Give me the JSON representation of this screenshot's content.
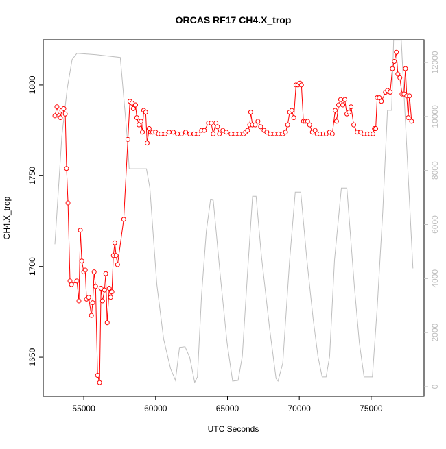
{
  "chart_data": {
    "type": "line",
    "title": "ORCAS RF17 CH4.X_trop",
    "xlabel": "UTC Seconds",
    "ylabel": "CH4.X_trop",
    "xlim": [
      52177,
      78684
    ],
    "ylim": [
      1628.5,
      1824.9
    ],
    "y2lim": [
      -356,
      12840
    ],
    "xticks": [
      55000,
      60000,
      65000,
      70000,
      75000
    ],
    "yticks": [
      1650,
      1700,
      1750,
      1800
    ],
    "y2ticks": [
      0,
      2000,
      4000,
      6000,
      8000,
      10000,
      12000
    ],
    "series": [
      {
        "color": "#ff0000",
        "markers": true,
        "x": [
          52990,
          53130,
          53270,
          53370,
          53470,
          53610,
          53710,
          53800,
          53900,
          54040,
          54140,
          54520,
          54660,
          54760,
          54860,
          55000,
          55100,
          55190,
          55340,
          55530,
          55620,
          55720,
          55820,
          55960,
          56100,
          56200,
          56300,
          56440,
          56530,
          56630,
          56770,
          56870,
          56960,
          57060,
          57160,
          57250,
          57350,
          57780,
          58070,
          58210,
          58360,
          58450,
          58600,
          58690,
          58840,
          58980,
          59080,
          59170,
          59310,
          59410,
          59550,
          59650,
          59790,
          60000,
          60200,
          60370,
          60660,
          60940,
          61230,
          61520,
          61800,
          62090,
          62380,
          62670,
          62960,
          63200,
          63390,
          63680,
          63870,
          64010,
          64200,
          64300,
          64440,
          64680,
          64920,
          65250,
          65540,
          65830,
          66120,
          66260,
          66400,
          66550,
          66620,
          66740,
          66930,
          67120,
          67310,
          67550,
          67740,
          67980,
          68270,
          68560,
          68850,
          69040,
          69190,
          69330,
          69480,
          69620,
          69770,
          69910,
          70050,
          70150,
          70290,
          70430,
          70580,
          70720,
          70910,
          71100,
          71240,
          71440,
          71680,
          71870,
          72110,
          72300,
          72500,
          72590,
          72740,
          72880,
          73030,
          73170,
          73310,
          73460,
          73600,
          73790,
          74030,
          74270,
          74510,
          74750,
          74940,
          75130,
          75230,
          75320,
          75420,
          75570,
          75710,
          76000,
          76140,
          76330,
          76480,
          76620,
          76760,
          76860,
          77000,
          77150,
          77290,
          77390,
          77480,
          77580,
          77670,
          77820
        ],
        "values": [
          1783,
          1788,
          1783,
          1782,
          1786,
          1787,
          1784,
          1754,
          1735,
          1692,
          1690,
          1692,
          1681,
          1720,
          1703,
          1697,
          1698,
          1682,
          1683,
          1673,
          1680,
          1697,
          1689,
          1640,
          1636,
          1688,
          1681,
          1687,
          1696,
          1669,
          1688,
          1683,
          1686,
          1706,
          1713,
          1706,
          1701,
          1726,
          1770,
          1791,
          1790,
          1787,
          1789,
          1782,
          1778,
          1780,
          1774,
          1786,
          1785,
          1768,
          1776,
          1774,
          1774,
          1774,
          1773,
          1773,
          1773,
          1774,
          1774,
          1773,
          1773,
          1774,
          1773,
          1773,
          1773,
          1775,
          1775,
          1779,
          1779,
          1773,
          1779,
          1777,
          1773,
          1775,
          1774,
          1773,
          1773,
          1773,
          1773,
          1774,
          1775,
          1778,
          1785,
          1778,
          1778,
          1780,
          1777,
          1775,
          1774,
          1773,
          1773,
          1773,
          1773,
          1774,
          1778,
          1785,
          1786,
          1782,
          1800,
          1800,
          1801,
          1800,
          1780,
          1780,
          1780,
          1778,
          1774,
          1775,
          1773,
          1773,
          1773,
          1773,
          1774,
          1773,
          1786,
          1780,
          1789,
          1792,
          1789,
          1792,
          1784,
          1785,
          1788,
          1778,
          1774,
          1774,
          1773,
          1773,
          1773,
          1773,
          1776,
          1776,
          1793,
          1793,
          1791,
          1796,
          1797,
          1796,
          1809,
          1813,
          1818,
          1806,
          1804,
          1795,
          1795,
          1809,
          1794,
          1782,
          1794,
          1780
        ]
      },
      {
        "color": "#bebebe",
        "axis": "y2",
        "markers": false,
        "x": [
          52990,
          53470,
          53850,
          54190,
          54520,
          55860,
          57540,
          58020,
          58160,
          59360,
          59600,
          60080,
          60560,
          61040,
          61380,
          61660,
          62050,
          62380,
          62720,
          62910,
          63200,
          63530,
          63820,
          64010,
          64490,
          64970,
          65360,
          65740,
          66030,
          66410,
          66750,
          66990,
          67370,
          67940,
          68380,
          68520,
          68850,
          69330,
          69720,
          70100,
          70530,
          70960,
          71300,
          71590,
          71870,
          72110,
          72450,
          72930,
          73310,
          73840,
          74180,
          74510,
          75090,
          75420,
          75810,
          76140,
          76430,
          76570,
          77100,
          77910
        ],
        "values": [
          5267,
          9262,
          11043,
          12112,
          12341,
          12290,
          12188,
          9262,
          8066,
          8066,
          7354,
          3791,
          1756,
          662,
          229,
          1450,
          1476,
          1069,
          153,
          356,
          3410,
          5751,
          6921,
          6896,
          4173,
          1628,
          204,
          229,
          1120,
          4300,
          7048,
          7048,
          4809,
          2137,
          305,
          204,
          865,
          4682,
          7201,
          7201,
          4682,
          2519,
          1120,
          356,
          356,
          1120,
          4682,
          7354,
          7354,
          3664,
          1628,
          356,
          356,
          2901,
          6463,
          10229,
          10229,
          12824,
          12824,
          4377
        ]
      }
    ]
  }
}
